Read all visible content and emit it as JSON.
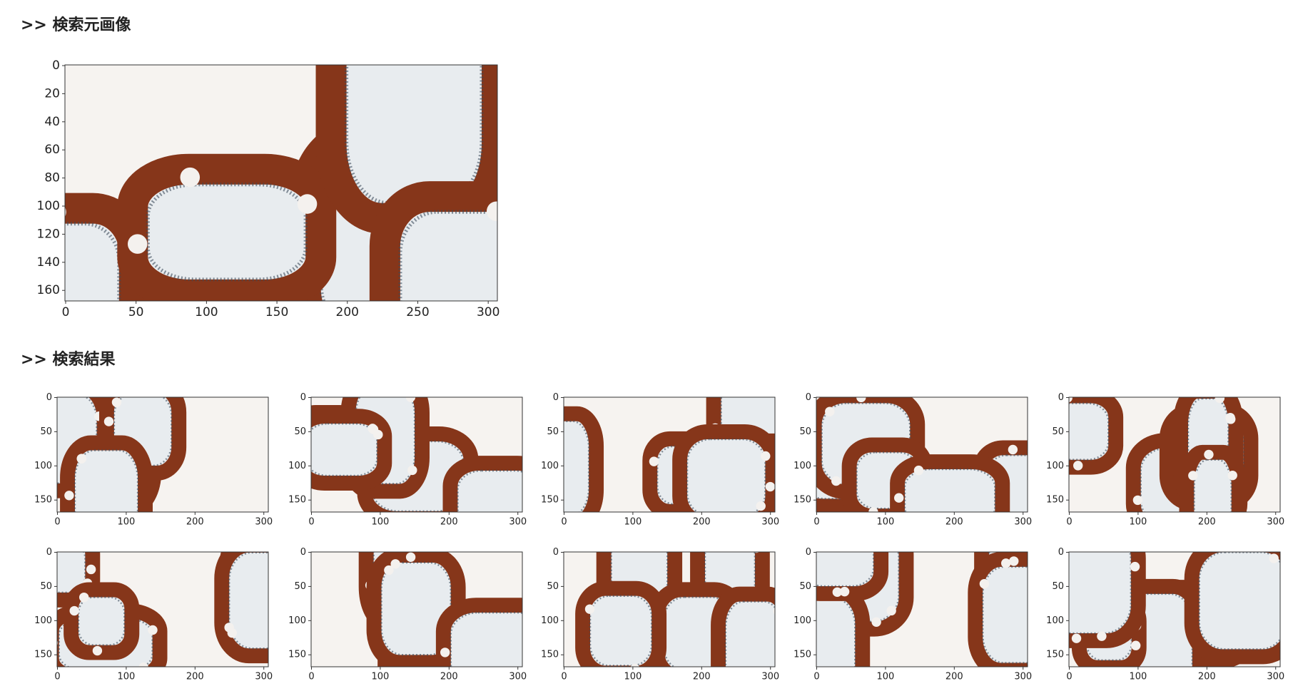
{
  "headers": {
    "source": ">> 検索元画像",
    "results": ">> 検索結果"
  },
  "query_axes": {
    "xlim": [
      -0.5,
      306.5
    ],
    "ylim": [
      167.5,
      -0.5
    ],
    "xticks": [
      0,
      50,
      100,
      150,
      200,
      250,
      300
    ],
    "yticks": [
      0,
      20,
      40,
      60,
      80,
      100,
      120,
      140,
      160
    ]
  },
  "result_axes": {
    "xlim": [
      -0.5,
      306.5
    ],
    "ylim": [
      167.5,
      -0.5
    ],
    "xticks": [
      0,
      100,
      200,
      300
    ],
    "yticks": [
      0,
      50,
      100,
      150
    ]
  }
}
